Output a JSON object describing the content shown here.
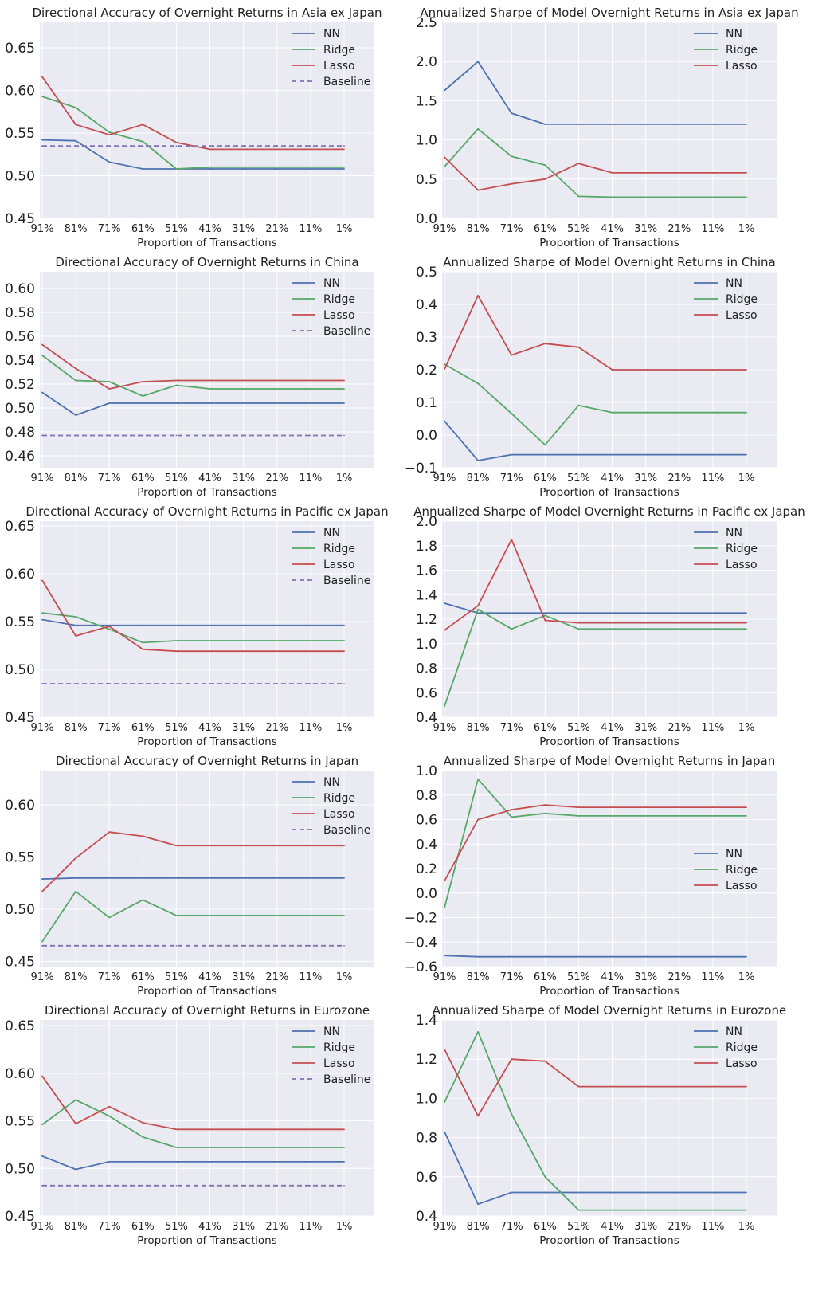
{
  "figure": {
    "x_categories": [
      "91%",
      "81%",
      "71%",
      "61%",
      "51%",
      "41%",
      "31%",
      "21%",
      "11%",
      "1%"
    ],
    "colors": {
      "NN": "#4c72b0",
      "Ridge": "#55a868",
      "Lasso": "#c44e52",
      "Baseline": "#8172b2",
      "panel_bg": "#eaeaf2",
      "grid": "#ffffff"
    }
  },
  "chart_data": [
    {
      "type": "line",
      "title": "Directional Accuracy of Overnight Returns in Asia ex Japan",
      "xlabel": "Proportion of Transactions",
      "ylabel": "",
      "categories": [
        "91%",
        "81%",
        "71%",
        "61%",
        "51%",
        "41%",
        "31%",
        "21%",
        "11%",
        "1%"
      ],
      "ylim": [
        0.45,
        0.68
      ],
      "yticks": [
        0.45,
        0.5,
        0.55,
        0.6,
        0.65
      ],
      "ytick_labels": [
        "0.45",
        "0.50",
        "0.55",
        "0.60",
        "0.65"
      ],
      "legend": "top-right",
      "series": [
        {
          "name": "NN",
          "values": [
            0.542,
            0.541,
            0.516,
            0.508,
            0.508,
            0.508,
            0.508,
            0.508,
            0.508,
            0.508
          ]
        },
        {
          "name": "Ridge",
          "values": [
            0.593,
            0.58,
            0.551,
            0.54,
            0.508,
            0.51,
            0.51,
            0.51,
            0.51,
            0.51
          ]
        },
        {
          "name": "Lasso",
          "values": [
            0.616,
            0.56,
            0.548,
            0.56,
            0.539,
            0.531,
            0.531,
            0.531,
            0.531,
            0.531
          ]
        },
        {
          "name": "Baseline",
          "dashed": true,
          "values": [
            0.535,
            0.535,
            0.535,
            0.535,
            0.535,
            0.535,
            0.535,
            0.535,
            0.535,
            0.535
          ]
        }
      ]
    },
    {
      "type": "line",
      "title": "Annualized Sharpe of Model Overnight Returns in Asia ex Japan",
      "xlabel": "Proportion of Transactions",
      "ylabel": "",
      "categories": [
        "91%",
        "81%",
        "71%",
        "61%",
        "51%",
        "41%",
        "31%",
        "21%",
        "11%",
        "1%"
      ],
      "ylim": [
        0.0,
        2.5
      ],
      "yticks": [
        0.0,
        0.5,
        1.0,
        1.5,
        2.0,
        2.5
      ],
      "ytick_labels": [
        "0.0",
        "0.5",
        "1.0",
        "1.5",
        "2.0",
        "2.5"
      ],
      "legend": "top-right",
      "series": [
        {
          "name": "NN",
          "values": [
            1.63,
            2.0,
            1.34,
            1.2,
            1.2,
            1.2,
            1.2,
            1.2,
            1.2,
            1.2
          ]
        },
        {
          "name": "Ridge",
          "values": [
            0.66,
            1.14,
            0.79,
            0.68,
            0.28,
            0.27,
            0.27,
            0.27,
            0.27,
            0.27
          ]
        },
        {
          "name": "Lasso",
          "values": [
            0.78,
            0.36,
            0.44,
            0.5,
            0.7,
            0.58,
            0.58,
            0.58,
            0.58,
            0.58
          ]
        }
      ]
    },
    {
      "type": "line",
      "title": "Directional Accuracy of Overnight Returns in China",
      "xlabel": "Proportion of Transactions",
      "ylabel": "",
      "categories": [
        "91%",
        "81%",
        "71%",
        "61%",
        "51%",
        "41%",
        "31%",
        "21%",
        "11%",
        "1%"
      ],
      "ylim": [
        0.45,
        0.614
      ],
      "yticks": [
        0.46,
        0.48,
        0.5,
        0.52,
        0.54,
        0.56,
        0.58,
        0.6
      ],
      "ytick_labels": [
        "0.46",
        "0.48",
        "0.50",
        "0.52",
        "0.54",
        "0.56",
        "0.58",
        "0.60"
      ],
      "legend": "top-right",
      "series": [
        {
          "name": "NN",
          "values": [
            0.513,
            0.494,
            0.504,
            0.504,
            0.504,
            0.504,
            0.504,
            0.504,
            0.504,
            0.504
          ]
        },
        {
          "name": "Ridge",
          "values": [
            0.544,
            0.523,
            0.522,
            0.51,
            0.519,
            0.516,
            0.516,
            0.516,
            0.516,
            0.516
          ]
        },
        {
          "name": "Lasso",
          "values": [
            0.553,
            0.533,
            0.516,
            0.522,
            0.523,
            0.523,
            0.523,
            0.523,
            0.523,
            0.523
          ]
        },
        {
          "name": "Baseline",
          "dashed": true,
          "values": [
            0.477,
            0.477,
            0.477,
            0.477,
            0.477,
            0.477,
            0.477,
            0.477,
            0.477,
            0.477
          ]
        }
      ]
    },
    {
      "type": "line",
      "title": "Annualized Sharpe of Model Overnight Returns in China",
      "xlabel": "Proportion of Transactions",
      "ylabel": "",
      "categories": [
        "91%",
        "81%",
        "71%",
        "61%",
        "51%",
        "41%",
        "31%",
        "21%",
        "11%",
        "1%"
      ],
      "ylim": [
        -0.1,
        0.5
      ],
      "yticks": [
        -0.1,
        0.0,
        0.1,
        0.2,
        0.3,
        0.4,
        0.5
      ],
      "ytick_labels": [
        "−0.1",
        "0.0",
        "0.1",
        "0.2",
        "0.3",
        "0.4",
        "0.5"
      ],
      "legend": "top-right",
      "series": [
        {
          "name": "NN",
          "values": [
            0.043,
            -0.078,
            -0.06,
            -0.06,
            -0.06,
            -0.06,
            -0.06,
            -0.06,
            -0.06,
            -0.06
          ]
        },
        {
          "name": "Ridge",
          "values": [
            0.217,
            0.158,
            0.066,
            -0.03,
            0.091,
            0.069,
            0.069,
            0.069,
            0.069,
            0.069
          ]
        },
        {
          "name": "Lasso",
          "values": [
            0.202,
            0.427,
            0.245,
            0.28,
            0.269,
            0.2,
            0.2,
            0.2,
            0.2,
            0.2
          ]
        }
      ]
    },
    {
      "type": "line",
      "title": "Directional Accuracy of Overnight Returns in Pacific ex Japan",
      "xlabel": "Proportion of Transactions",
      "ylabel": "",
      "categories": [
        "91%",
        "81%",
        "71%",
        "61%",
        "51%",
        "41%",
        "31%",
        "21%",
        "11%",
        "1%"
      ],
      "ylim": [
        0.45,
        0.655
      ],
      "yticks": [
        0.45,
        0.5,
        0.55,
        0.6,
        0.65
      ],
      "ytick_labels": [
        "0.45",
        "0.50",
        "0.55",
        "0.60",
        "0.65"
      ],
      "legend": "top-right",
      "series": [
        {
          "name": "NN",
          "values": [
            0.552,
            0.546,
            0.546,
            0.546,
            0.546,
            0.546,
            0.546,
            0.546,
            0.546,
            0.546
          ]
        },
        {
          "name": "Ridge",
          "values": [
            0.559,
            0.555,
            0.542,
            0.528,
            0.53,
            0.53,
            0.53,
            0.53,
            0.53,
            0.53
          ]
        },
        {
          "name": "Lasso",
          "values": [
            0.593,
            0.535,
            0.545,
            0.521,
            0.519,
            0.519,
            0.519,
            0.519,
            0.519,
            0.519
          ]
        },
        {
          "name": "Baseline",
          "dashed": true,
          "values": [
            0.485,
            0.485,
            0.485,
            0.485,
            0.485,
            0.485,
            0.485,
            0.485,
            0.485,
            0.485
          ]
        }
      ]
    },
    {
      "type": "line",
      "title": "Annualized Sharpe of Model Overnight Returns in Pacific ex Japan",
      "xlabel": "Proportion of Transactions",
      "ylabel": "",
      "categories": [
        "91%",
        "81%",
        "71%",
        "61%",
        "51%",
        "41%",
        "31%",
        "21%",
        "11%",
        "1%"
      ],
      "ylim": [
        0.4,
        2.0
      ],
      "yticks": [
        0.4,
        0.6,
        0.8,
        1.0,
        1.2,
        1.4,
        1.6,
        1.8,
        2.0
      ],
      "ytick_labels": [
        "0.4",
        "0.6",
        "0.8",
        "1.0",
        "1.2",
        "1.4",
        "1.6",
        "1.8",
        "2.0"
      ],
      "legend": "top-right",
      "series": [
        {
          "name": "NN",
          "values": [
            1.33,
            1.25,
            1.25,
            1.25,
            1.25,
            1.25,
            1.25,
            1.25,
            1.25,
            1.25
          ]
        },
        {
          "name": "Ridge",
          "values": [
            0.49,
            1.28,
            1.12,
            1.23,
            1.12,
            1.12,
            1.12,
            1.12,
            1.12,
            1.12
          ]
        },
        {
          "name": "Lasso",
          "values": [
            1.11,
            1.31,
            1.85,
            1.19,
            1.17,
            1.17,
            1.17,
            1.17,
            1.17,
            1.17
          ]
        }
      ]
    },
    {
      "type": "line",
      "title": "Directional Accuracy of Overnight Returns in Japan",
      "xlabel": "Proportion of Transactions",
      "ylabel": "",
      "categories": [
        "91%",
        "81%",
        "71%",
        "61%",
        "51%",
        "41%",
        "31%",
        "21%",
        "11%",
        "1%"
      ],
      "ylim": [
        0.445,
        0.633
      ],
      "yticks": [
        0.45,
        0.5,
        0.55,
        0.6
      ],
      "ytick_labels": [
        "0.45",
        "0.50",
        "0.55",
        "0.60"
      ],
      "legend": "top-right",
      "series": [
        {
          "name": "NN",
          "values": [
            0.529,
            0.53,
            0.53,
            0.53,
            0.53,
            0.53,
            0.53,
            0.53,
            0.53,
            0.53
          ]
        },
        {
          "name": "Ridge",
          "values": [
            0.469,
            0.517,
            0.492,
            0.509,
            0.494,
            0.494,
            0.494,
            0.494,
            0.494,
            0.494
          ]
        },
        {
          "name": "Lasso",
          "values": [
            0.517,
            0.549,
            0.574,
            0.57,
            0.561,
            0.561,
            0.561,
            0.561,
            0.561,
            0.561
          ]
        },
        {
          "name": "Baseline",
          "dashed": true,
          "values": [
            0.465,
            0.465,
            0.465,
            0.465,
            0.465,
            0.465,
            0.465,
            0.465,
            0.465,
            0.465
          ]
        }
      ]
    },
    {
      "type": "line",
      "title": "Annualized Sharpe of Model Overnight Returns in Japan",
      "xlabel": "Proportion of Transactions",
      "ylabel": "",
      "categories": [
        "91%",
        "81%",
        "71%",
        "61%",
        "51%",
        "41%",
        "31%",
        "21%",
        "11%",
        "1%"
      ],
      "ylim": [
        -0.6,
        1.0
      ],
      "yticks": [
        -0.6,
        -0.4,
        -0.2,
        0.0,
        0.2,
        0.4,
        0.6,
        0.8,
        1.0
      ],
      "ytick_labels": [
        "−0.6",
        "−0.4",
        "−0.2",
        "0.0",
        "0.2",
        "0.4",
        "0.6",
        "0.8",
        "1.0"
      ],
      "legend": "center-right",
      "series": [
        {
          "name": "NN",
          "values": [
            -0.51,
            -0.52,
            -0.52,
            -0.52,
            -0.52,
            -0.52,
            -0.52,
            -0.52,
            -0.52,
            -0.52
          ]
        },
        {
          "name": "Ridge",
          "values": [
            -0.12,
            0.93,
            0.62,
            0.65,
            0.63,
            0.63,
            0.63,
            0.63,
            0.63,
            0.63
          ]
        },
        {
          "name": "Lasso",
          "values": [
            0.1,
            0.6,
            0.68,
            0.72,
            0.7,
            0.7,
            0.7,
            0.7,
            0.7,
            0.7
          ]
        }
      ]
    },
    {
      "type": "line",
      "title": "Directional Accuracy of Overnight Returns in Eurozone",
      "xlabel": "Proportion of Transactions",
      "ylabel": "",
      "categories": [
        "91%",
        "81%",
        "71%",
        "61%",
        "51%",
        "41%",
        "31%",
        "21%",
        "11%",
        "1%"
      ],
      "ylim": [
        0.45,
        0.656
      ],
      "yticks": [
        0.45,
        0.5,
        0.55,
        0.6,
        0.65
      ],
      "ytick_labels": [
        "0.45",
        "0.50",
        "0.55",
        "0.60",
        "0.65"
      ],
      "legend": "top-right",
      "series": [
        {
          "name": "NN",
          "values": [
            0.513,
            0.499,
            0.507,
            0.507,
            0.507,
            0.507,
            0.507,
            0.507,
            0.507,
            0.507
          ]
        },
        {
          "name": "Ridge",
          "values": [
            0.546,
            0.572,
            0.555,
            0.533,
            0.522,
            0.522,
            0.522,
            0.522,
            0.522,
            0.522
          ]
        },
        {
          "name": "Lasso",
          "values": [
            0.597,
            0.547,
            0.565,
            0.548,
            0.541,
            0.541,
            0.541,
            0.541,
            0.541,
            0.541
          ]
        },
        {
          "name": "Baseline",
          "dashed": true,
          "values": [
            0.482,
            0.482,
            0.482,
            0.482,
            0.482,
            0.482,
            0.482,
            0.482,
            0.482,
            0.482
          ]
        }
      ]
    },
    {
      "type": "line",
      "title": "Annualized Sharpe of Model Overnight Returns in Eurozone",
      "xlabel": "Proportion of Transactions",
      "ylabel": "",
      "categories": [
        "91%",
        "81%",
        "71%",
        "61%",
        "51%",
        "41%",
        "31%",
        "21%",
        "11%",
        "1%"
      ],
      "ylim": [
        0.4,
        1.4
      ],
      "yticks": [
        0.4,
        0.6,
        0.8,
        1.0,
        1.2,
        1.4
      ],
      "ytick_labels": [
        "0.4",
        "0.6",
        "0.8",
        "1.0",
        "1.2",
        "1.4"
      ],
      "legend": "top-right",
      "series": [
        {
          "name": "NN",
          "values": [
            0.83,
            0.46,
            0.52,
            0.52,
            0.52,
            0.52,
            0.52,
            0.52,
            0.52,
            0.52
          ]
        },
        {
          "name": "Ridge",
          "values": [
            0.98,
            1.34,
            0.92,
            0.6,
            0.43,
            0.43,
            0.43,
            0.43,
            0.43,
            0.43
          ]
        },
        {
          "name": "Lasso",
          "values": [
            1.25,
            0.91,
            1.2,
            1.19,
            1.06,
            1.06,
            1.06,
            1.06,
            1.06,
            1.06
          ]
        }
      ]
    }
  ]
}
